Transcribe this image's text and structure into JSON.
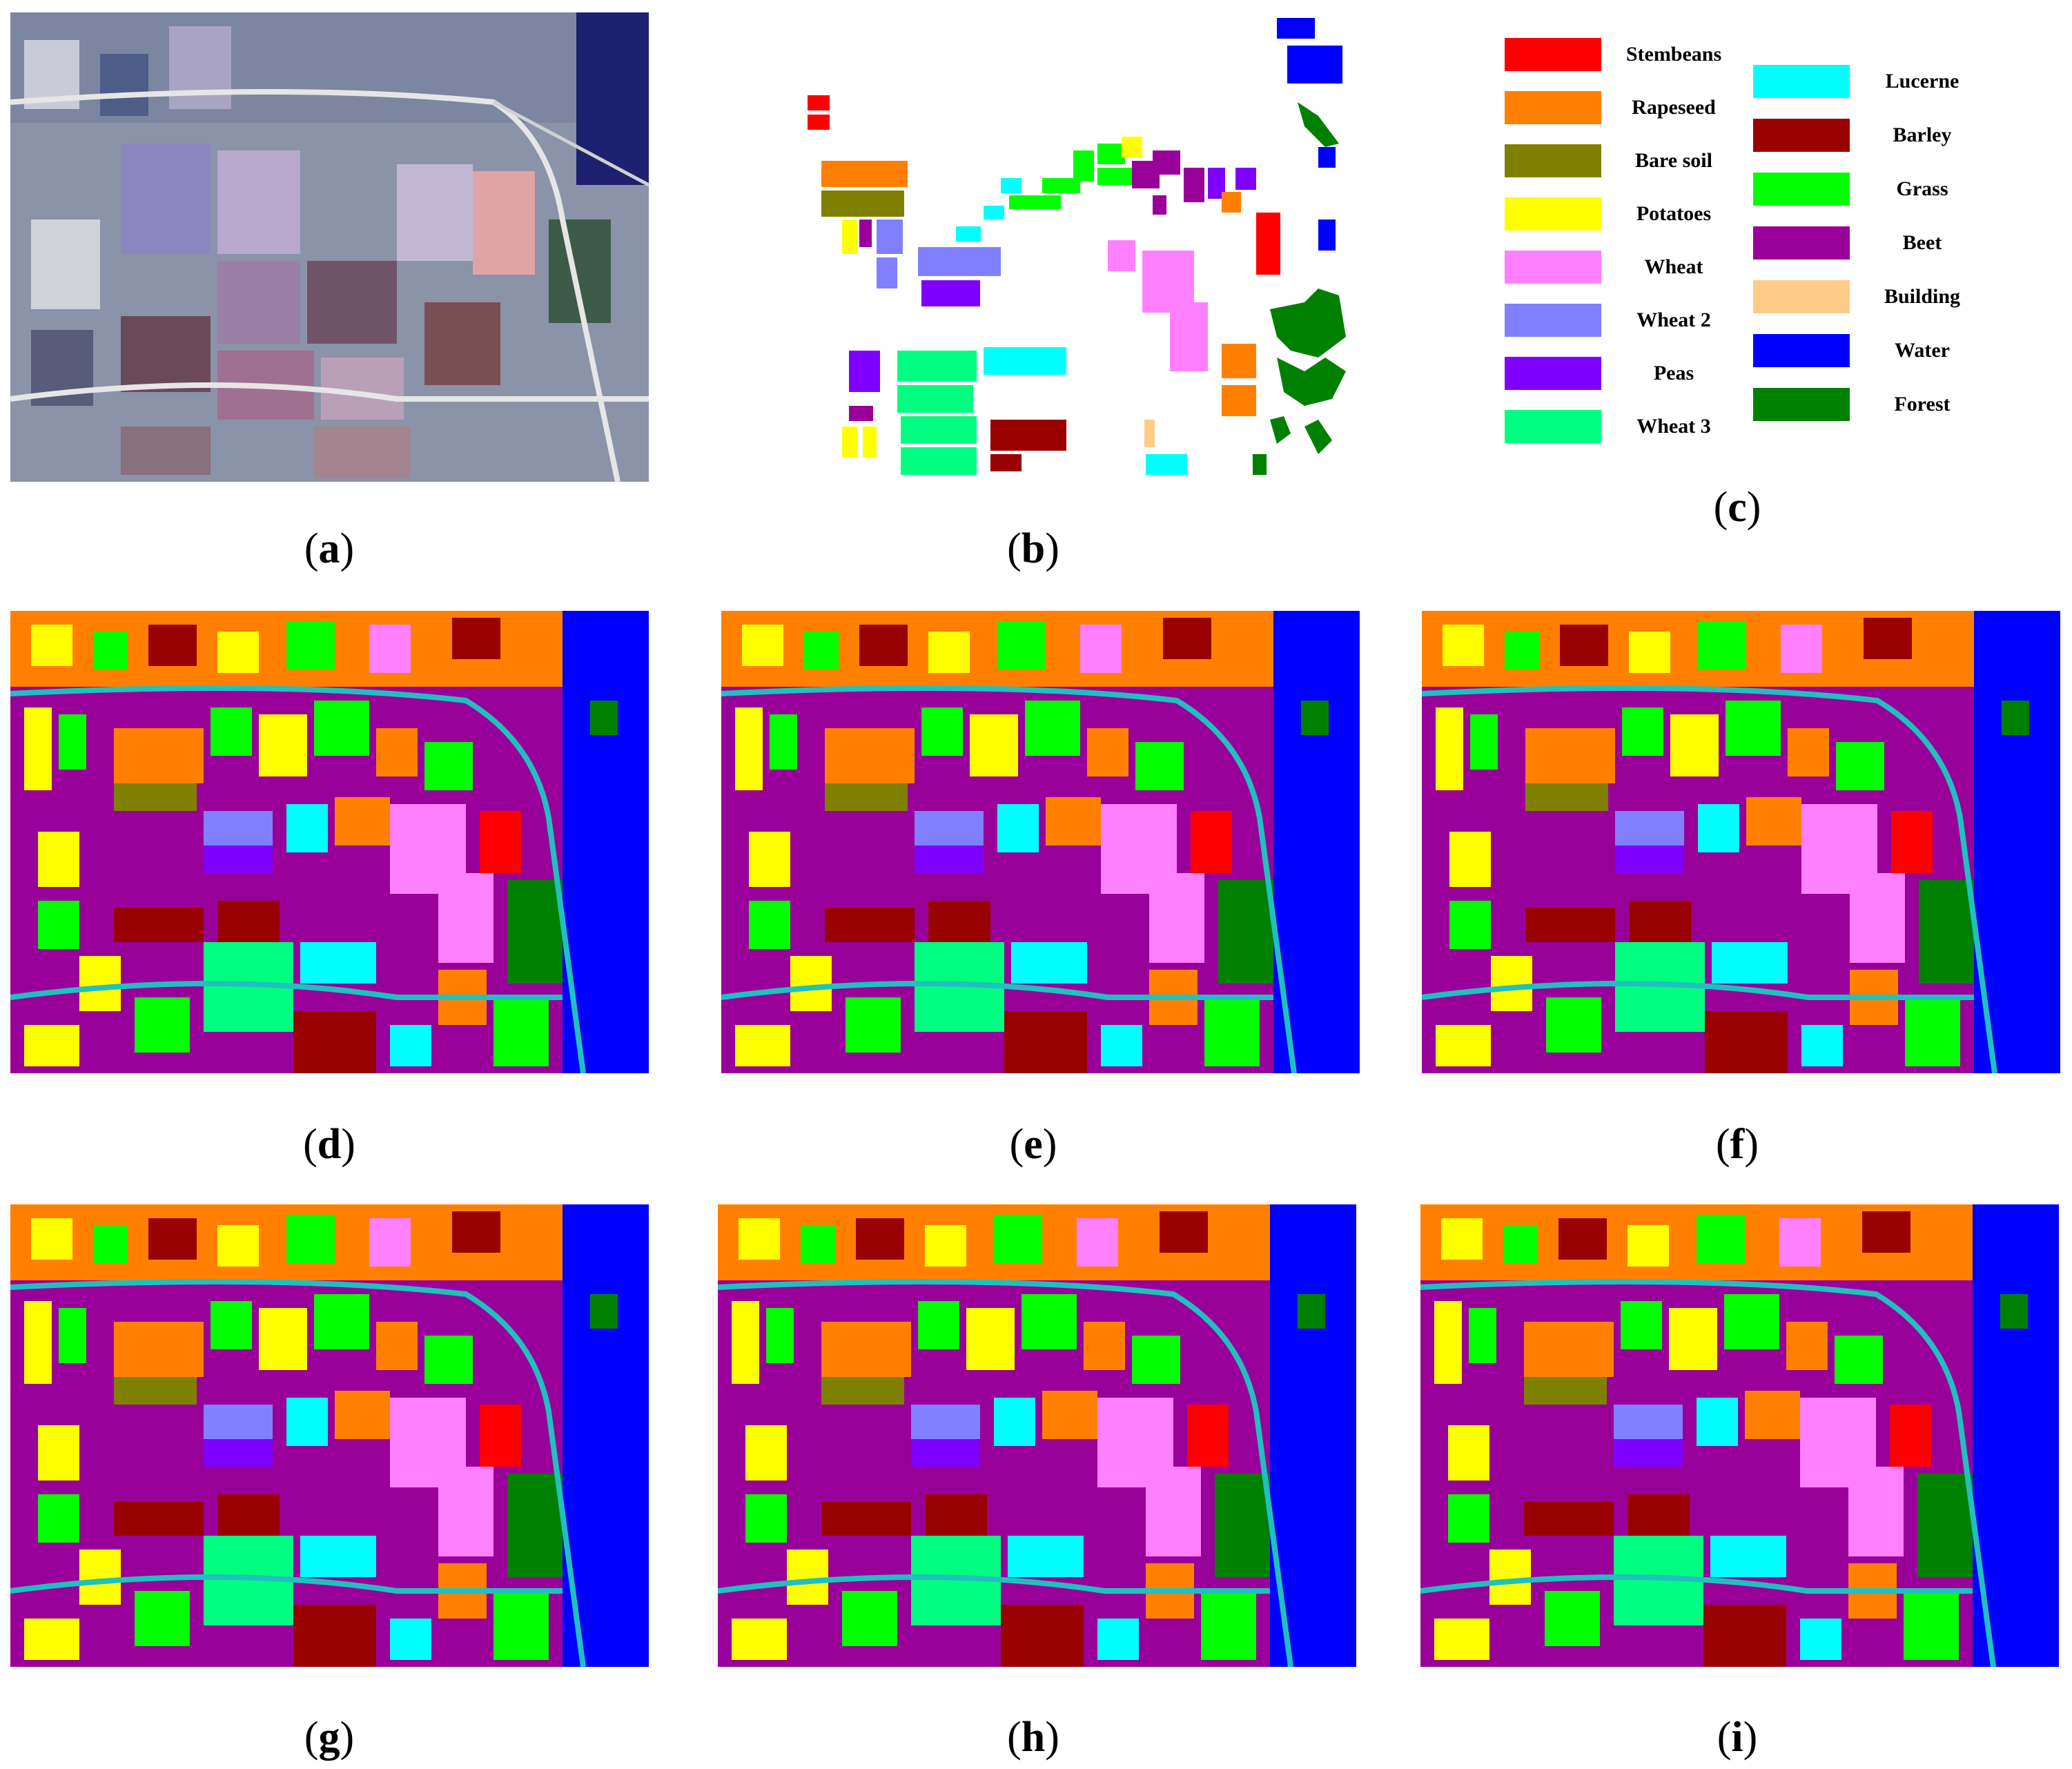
{
  "panels": {
    "a": {
      "open": "(",
      "letter": "a",
      "close": ")"
    },
    "b": {
      "open": "(",
      "letter": "b",
      "close": ")"
    },
    "c": {
      "open": "(",
      "letter": "c",
      "close": ")"
    },
    "d": {
      "open": "(",
      "letter": "d",
      "close": ")"
    },
    "e": {
      "open": "(",
      "letter": "e",
      "close": ")"
    },
    "f": {
      "open": "(",
      "letter": "f",
      "close": ")"
    },
    "g": {
      "open": "(",
      "letter": "g",
      "close": ")"
    },
    "h": {
      "open": "(",
      "letter": "h",
      "close": ")"
    },
    "i": {
      "open": "(",
      "letter": "i",
      "close": ")"
    }
  },
  "legend": [
    {
      "label": "Stembeans",
      "color": "#ff0000"
    },
    {
      "label": "Rapeseed",
      "color": "#ff8000"
    },
    {
      "label": "Bare soil",
      "color": "#808000"
    },
    {
      "label": "Potatoes",
      "color": "#ffff00"
    },
    {
      "label": "Wheat",
      "color": "#ff80ff"
    },
    {
      "label": "Wheat 2",
      "color": "#8080ff"
    },
    {
      "label": "Peas",
      "color": "#8000ff"
    },
    {
      "label": "Wheat 3",
      "color": "#00ff80"
    },
    {
      "label": "Lucerne",
      "color": "#00ffff"
    },
    {
      "label": "Barley",
      "color": "#990000"
    },
    {
      "label": "Grass",
      "color": "#00ff00"
    },
    {
      "label": "Beet",
      "color": "#990099"
    },
    {
      "label": "Building",
      "color": "#ffcc88"
    },
    {
      "label": "Water",
      "color": "#0000ff"
    },
    {
      "label": "Forest",
      "color": "#008000"
    }
  ]
}
